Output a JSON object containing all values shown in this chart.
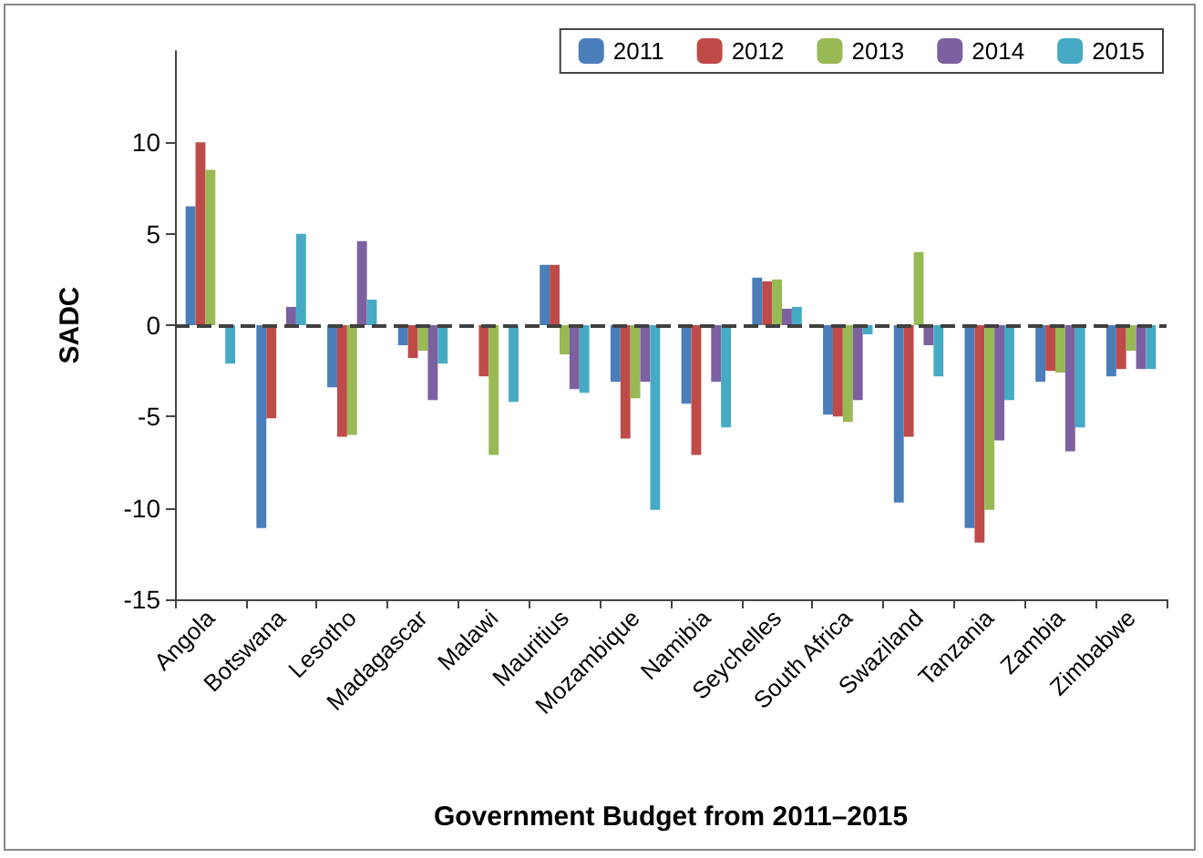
{
  "chart_data": {
    "type": "bar",
    "xlabel": "Government Budget from 2011–2015",
    "ylabel": "SADC",
    "categories": [
      "Angola",
      "Botswana",
      "Lesotho",
      "Madagascar",
      "Malawi",
      "Mauritius",
      "Mozambique",
      "Namibia",
      "Seychelles",
      "South Africa",
      "Swaziland",
      "Tanzania",
      "Zambia",
      "Zimbabwe"
    ],
    "series": [
      {
        "name": "2011",
        "color": "#4a7ebb",
        "values": [
          6.5,
          -11.1,
          -3.4,
          -1.1,
          null,
          3.3,
          -3.1,
          -4.3,
          2.6,
          -4.9,
          -9.7,
          -11.1,
          -3.1,
          -2.8
        ]
      },
      {
        "name": "2012",
        "color": "#be4b48",
        "values": [
          10,
          -5.1,
          -6.1,
          -1.8,
          -2.8,
          3.3,
          -6.2,
          -7.1,
          2.4,
          -5.0,
          -6.1,
          -11.9,
          -2.5,
          -2.4
        ]
      },
      {
        "name": "2013",
        "color": "#98b954",
        "values": [
          8.5,
          null,
          -6.0,
          -1.4,
          -7.1,
          -1.6,
          -4.0,
          null,
          2.5,
          -5.3,
          4.0,
          -10.1,
          -2.6,
          -1.4
        ]
      },
      {
        "name": "2014",
        "color": "#7d60a0",
        "values": [
          null,
          1.0,
          4.6,
          -4.1,
          null,
          -3.5,
          -3.1,
          -3.1,
          0.9,
          -4.1,
          -1.1,
          -6.3,
          -6.9,
          -2.4
        ]
      },
      {
        "name": "2015",
        "color": "#46aac5",
        "values": [
          -2.1,
          5.0,
          1.4,
          -2.1,
          -4.2,
          -3.7,
          -10.1,
          -5.6,
          1.0,
          -0.5,
          -2.8,
          -4.1,
          -5.6,
          -2.4
        ]
      }
    ],
    "ylim": [
      -15,
      15
    ],
    "yticks": [
      -15,
      -10,
      -5,
      0,
      5,
      10
    ],
    "ref_lines": [
      {
        "axis": "y",
        "value": 0,
        "color": "#404040",
        "line_style": "dashed"
      }
    ],
    "grid": false,
    "legend": "top right"
  }
}
